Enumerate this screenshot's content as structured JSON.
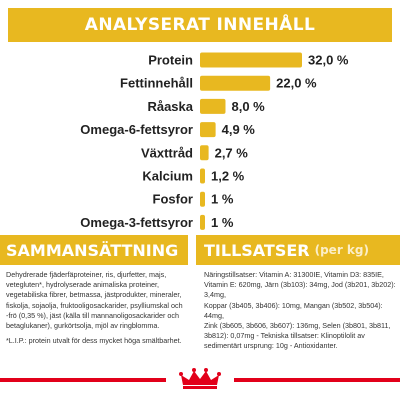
{
  "header": {
    "title": "ANALYSERAT INNEHÅLL"
  },
  "chart_data": {
    "type": "bar",
    "categories": [
      "Protein",
      "Fettinnehåll",
      "Råaska",
      "Omega-6-fettsyror",
      "Växttråd",
      "Kalcium",
      "Fosfor",
      "Omega-3-fettsyror"
    ],
    "values": [
      32.0,
      22.0,
      8.0,
      4.9,
      2.7,
      1.2,
      1,
      1
    ],
    "value_labels": [
      "32,0 %",
      "22,0 %",
      "8,0 %",
      "4,9 %",
      "2,7 %",
      "1,2 %",
      "1 %",
      "1 %"
    ],
    "title": "ANALYSERAT INNEHÅLL",
    "xlabel": "",
    "ylabel": "",
    "orientation": "horizontal",
    "bar_color": "#e8b820"
  },
  "composition": {
    "title": "SAMMANSÄTTNING",
    "lines": [
      "Dehydrerade fjäderfäproteiner, ris, djurfetter, majs,",
      "vetegluten*, hydrolyserade animaliska proteiner,",
      "vegetabiliska fibrer, betmassa, jästprodukter, mineraler,",
      "fiskolja, sojaolja, fruktooligosackarider, psylliumskal och",
      "-frö (0,35 %), jäst (källa till mannanoligosackarider och",
      "betaglukaner), gurkörtsolja, mjöl av ringblomma."
    ]
  },
  "additives": {
    "title": "TILLSATSER",
    "unit": "(per kg)",
    "lines": [
      "Näringstillsatser: Vitamin A: 31300IE, Vitamin D3: 835IE,",
      "Vitamin E: 620mg, Järn (3b103): 34mg, Jod (3b201, 3b202): 3,4mg,",
      "Koppar (3b405, 3b406): 10mg, Mangan (3b502, 3b504): 44mg,",
      "Zink (3b605, 3b606, 3b607): 136mg, Selen (3b801, 3b811,",
      "3b812): 0,07mg - Tekniska tillsatser: Klinoptilolit av",
      "sedimentärt ursprung: 10g - Antioxidanter."
    ]
  },
  "footnote": "*L.I.P.: protein utvalt för dess mycket höga smältbarhet.",
  "colors": {
    "accent": "#e8b820",
    "footer": "#e2001a"
  },
  "logo": {
    "icon": "royal-canin-crown-logo"
  }
}
